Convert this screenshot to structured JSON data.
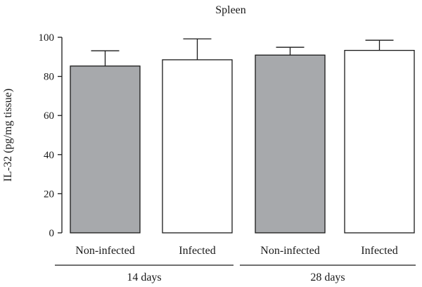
{
  "chart_data": {
    "type": "bar",
    "title": "Spleen",
    "ylabel": "IL-32 (pg/mg tissue)",
    "xlabel": "",
    "ylim": [
      0,
      100
    ],
    "yticks": [
      0,
      20,
      40,
      60,
      80,
      100
    ],
    "categories": [
      "Non-infected",
      "Infected",
      "Non-infected",
      "Infected"
    ],
    "groups": [
      {
        "label": "14 days",
        "categories": [
          0,
          1
        ]
      },
      {
        "label": "28 days",
        "categories": [
          2,
          3
        ]
      }
    ],
    "values": [
      85.3,
      88.5,
      90.9,
      93.3
    ],
    "errors": [
      7.8,
      10.7,
      4.0,
      5.2
    ],
    "bar_colors": [
      "#a7a9ac",
      "#ffffff",
      "#a7a9ac",
      "#ffffff"
    ],
    "grid": false,
    "legend": "none"
  }
}
